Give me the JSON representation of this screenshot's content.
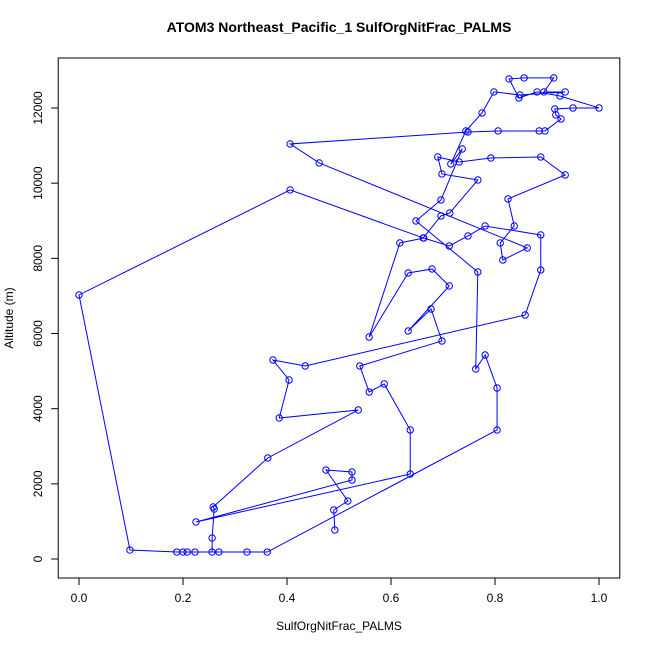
{
  "chart_data": {
    "type": "line",
    "title": "ATOM3 Northeast_Pacific_1 SulfOrgNitFrac_PALMS",
    "x_label": "SulfOrgNitFrac_PALMS",
    "y_label": "Altitude (m)",
    "color": "#0000ff",
    "xlim": [
      -0.04,
      1.04
    ],
    "ylim": [
      -505,
      13330
    ],
    "xticks": [
      {
        "value": 0,
        "label": "0.0"
      },
      0.2,
      0.4,
      0.6,
      0.8,
      {
        "value": 1,
        "label": "1.0"
      }
    ],
    "yticks": [
      0,
      2000,
      4000,
      6000,
      8000,
      10000,
      12000
    ],
    "x": [
      0.492,
      0.49,
      0.517,
      0.475,
      0.525,
      0.525,
      0.225,
      0.637,
      0.637,
      0.587,
      0.558,
      0.54,
      0.698,
      0.677,
      0.633,
      0.712,
      0.679,
      0.633,
      0.558,
      0.617,
      0.663,
      0.712,
      0.748,
      0.781,
      0.888,
      0.888,
      0.858,
      0.435,
      0.373,
      0.404,
      0.385,
      0.537,
      0.363,
      0.258,
      0.26,
      0.256,
      0.256,
      0.223,
      0.2,
      0.188,
      0.098,
      0.0,
      0.406,
      0.662,
      0.696,
      0.713,
      0.767,
      0.698,
      0.69,
      0.731,
      0.792,
      0.888,
      0.935,
      0.825,
      0.837,
      0.81,
      0.815,
      0.862,
      0.462,
      0.406,
      0.748,
      0.806,
      0.885,
      0.896,
      0.927,
      0.917,
      0.915,
      0.95,
      1.0,
      0.925,
      0.881,
      0.846,
      0.827,
      0.856,
      0.913,
      0.894,
      0.935,
      0.848,
      0.798,
      0.775,
      0.744,
      0.715,
      0.737,
      0.696,
      0.648,
      0.767,
      0.763,
      0.781,
      0.804,
      0.804,
      0.362,
      0.323,
      0.269,
      0.208
    ],
    "values": [
      772,
      1304,
      1543,
      2368,
      2315,
      2102,
      985,
      2262,
      3433,
      4657,
      4444,
      5136,
      5801,
      6652,
      6067,
      7265,
      7717,
      7611,
      5907,
      8409,
      8542,
      8329,
      8595,
      8861,
      8622,
      7690,
      6493,
      5136,
      5295,
      4763,
      3752,
      3965,
      2688,
      1384,
      1330,
      559,
      186,
      186,
      186,
      186,
      239,
      7025,
      9819,
      8542,
      9127,
      9207,
      10085,
      10245,
      10697,
      10564,
      10670,
      10697,
      10218,
      9580,
      8861,
      8409,
      7956,
      8276,
      10538,
      11043,
      11362,
      11389,
      11389,
      11389,
      11708,
      11815,
      11974,
      12001,
      12001,
      12320,
      12427,
      12267,
      12773,
      12800,
      12800,
      12427,
      12427,
      12347,
      12427,
      11868,
      11389,
      10511,
      10910,
      9553,
      8994,
      7637,
      5056,
      5428,
      4550,
      3433,
      186,
      186,
      186,
      186
    ]
  }
}
